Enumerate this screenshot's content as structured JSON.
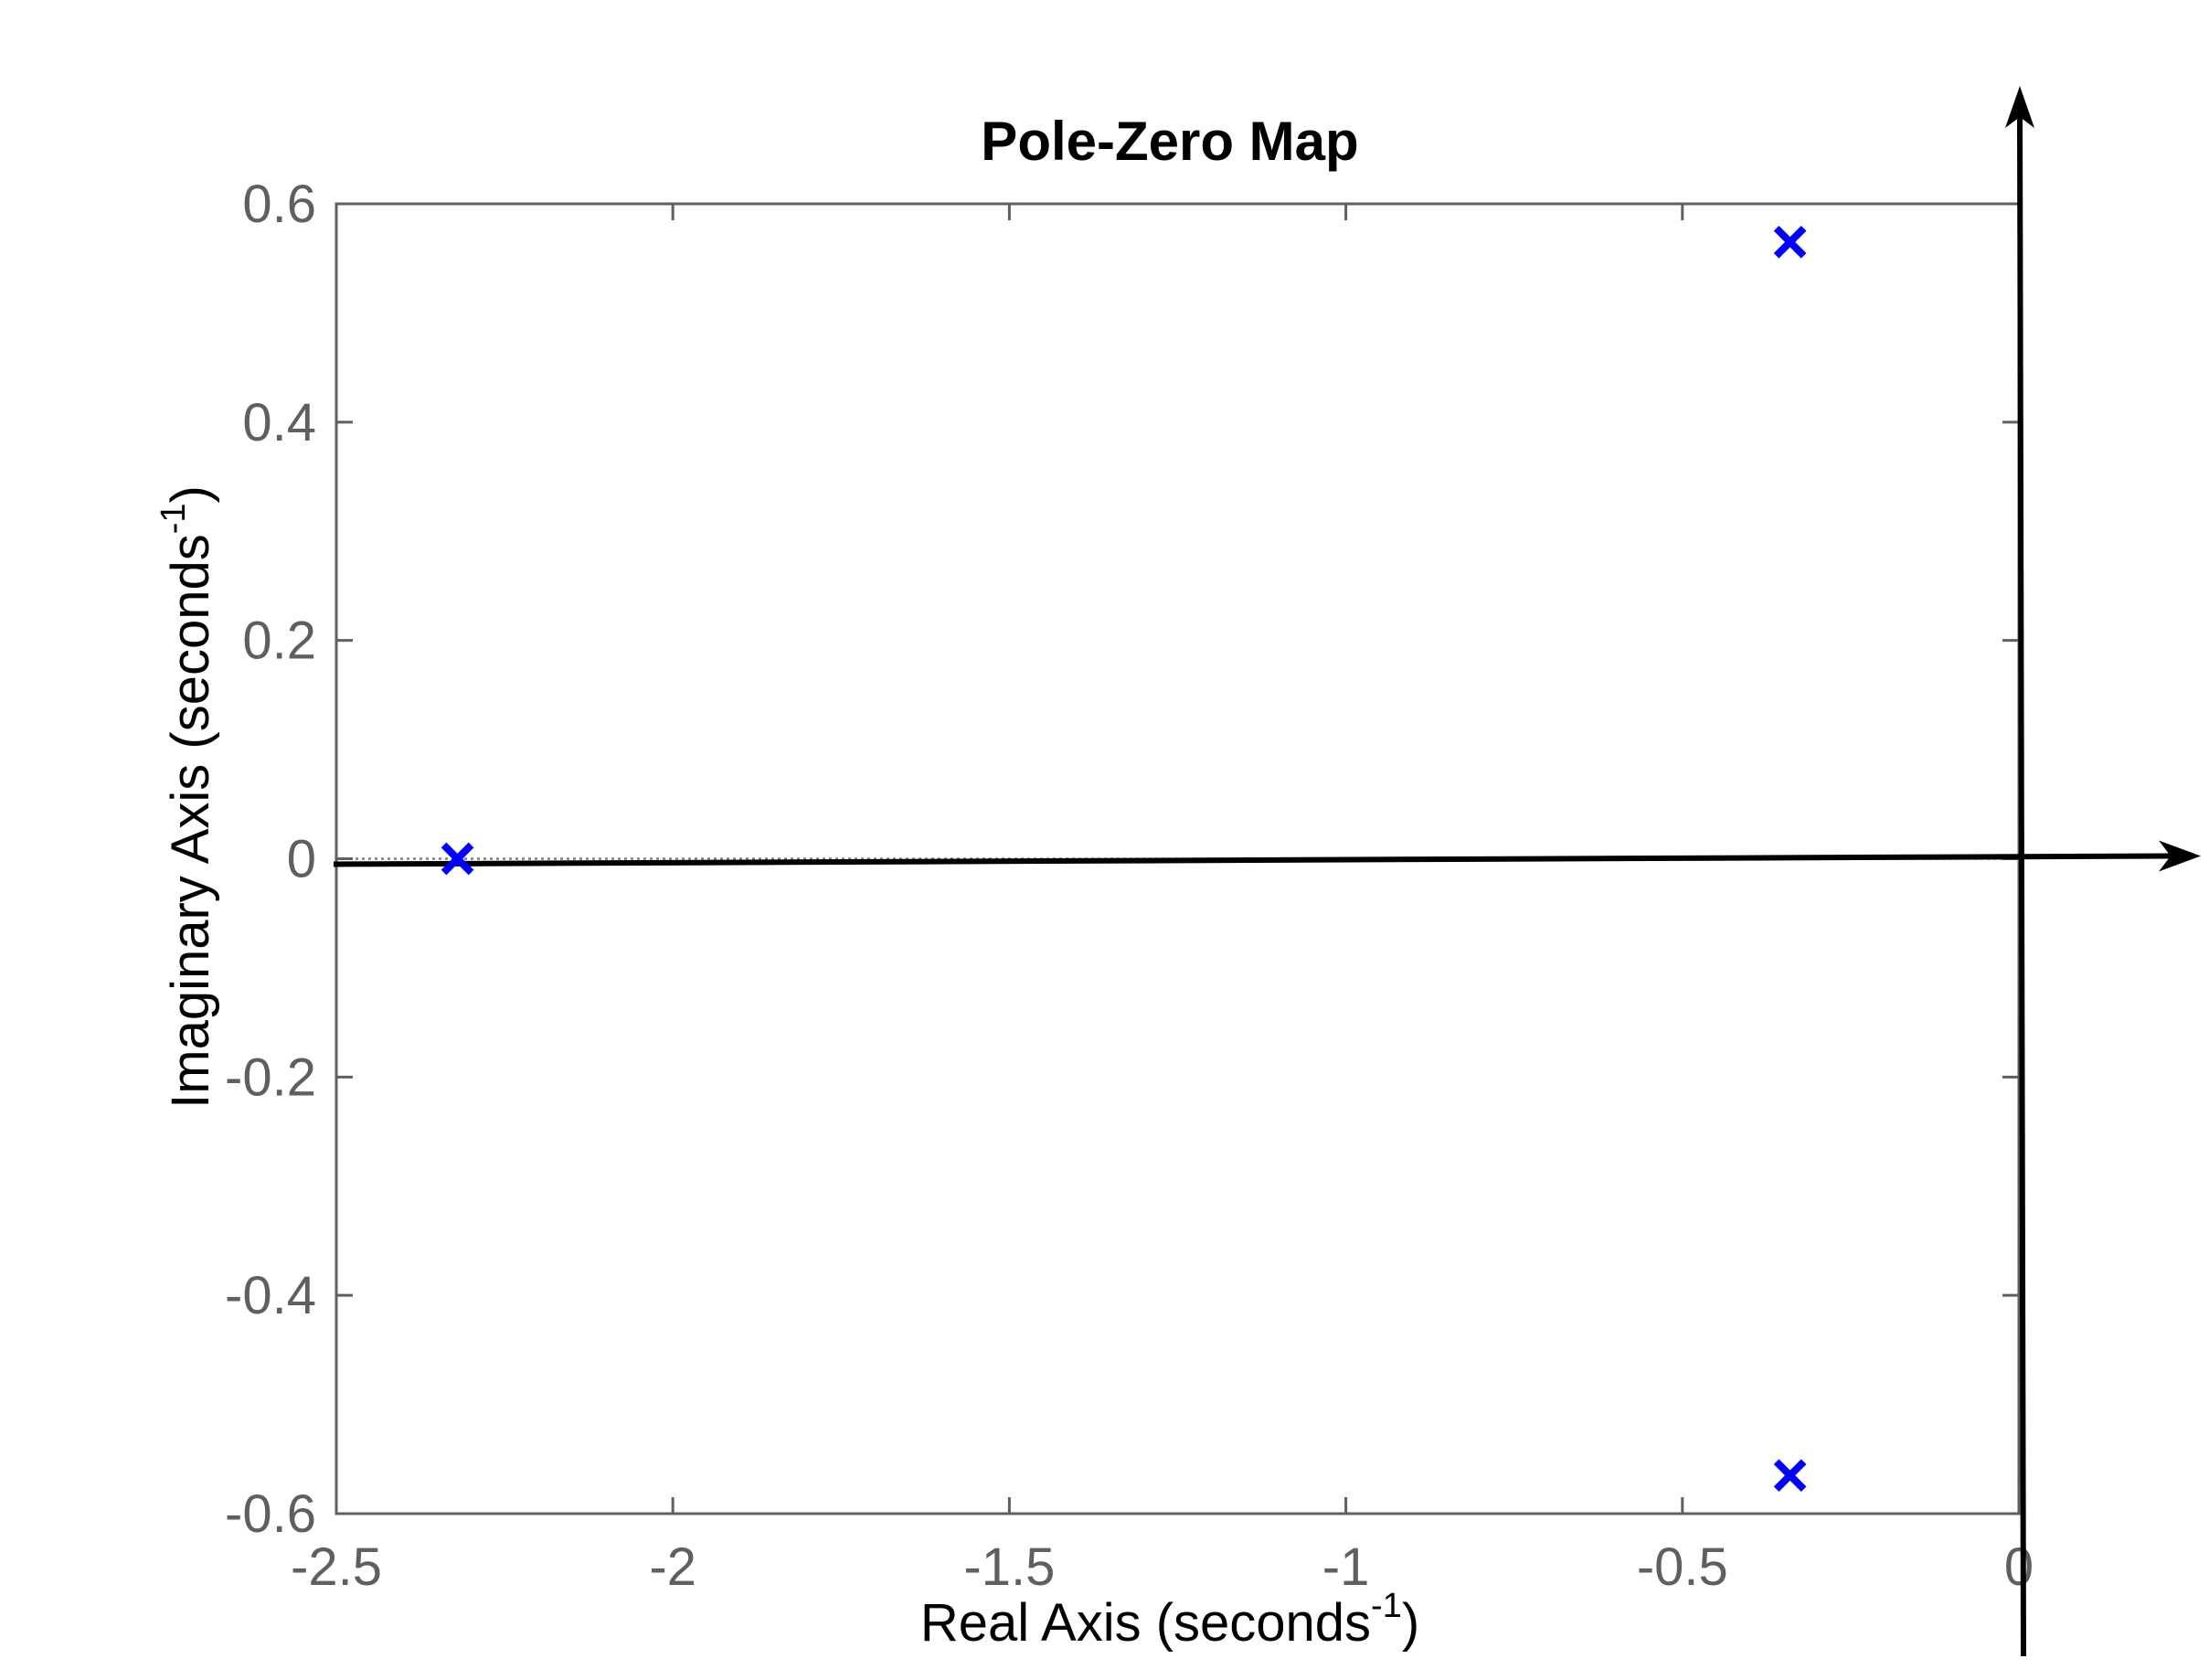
{
  "chart_data": {
    "type": "scatter",
    "title": "Pole-Zero Map",
    "xlabel": {
      "main": "Real Axis (seconds",
      "sup": "-1",
      "close": ")"
    },
    "ylabel": {
      "main": "Imaginary Axis (seconds",
      "sup": "-1",
      "close": ")"
    },
    "xlim": [
      -2.5,
      0
    ],
    "ylim": [
      -0.6,
      0.6
    ],
    "x_ticks": [
      -2.5,
      -2,
      -1.5,
      -1,
      -0.5,
      0
    ],
    "x_tick_labels": [
      "-2.5",
      "-2",
      "-1.5",
      "-1",
      "-0.5",
      "0"
    ],
    "y_ticks": [
      -0.6,
      -0.4,
      -0.2,
      0,
      0.2,
      0.4,
      0.6
    ],
    "y_tick_labels": [
      "-0.6",
      "-0.4",
      "-0.2",
      "0",
      "0.2",
      "0.4",
      "0.6"
    ],
    "grid": false,
    "marker": "x",
    "marker_color": "#0000ff",
    "axis_color": "#5f5f5f",
    "arrow_color": "#000000",
    "poles": [
      {
        "x": -2.32,
        "y": 0.0
      },
      {
        "x": -0.34,
        "y": 0.565
      },
      {
        "x": -0.34,
        "y": -0.565
      }
    ]
  }
}
